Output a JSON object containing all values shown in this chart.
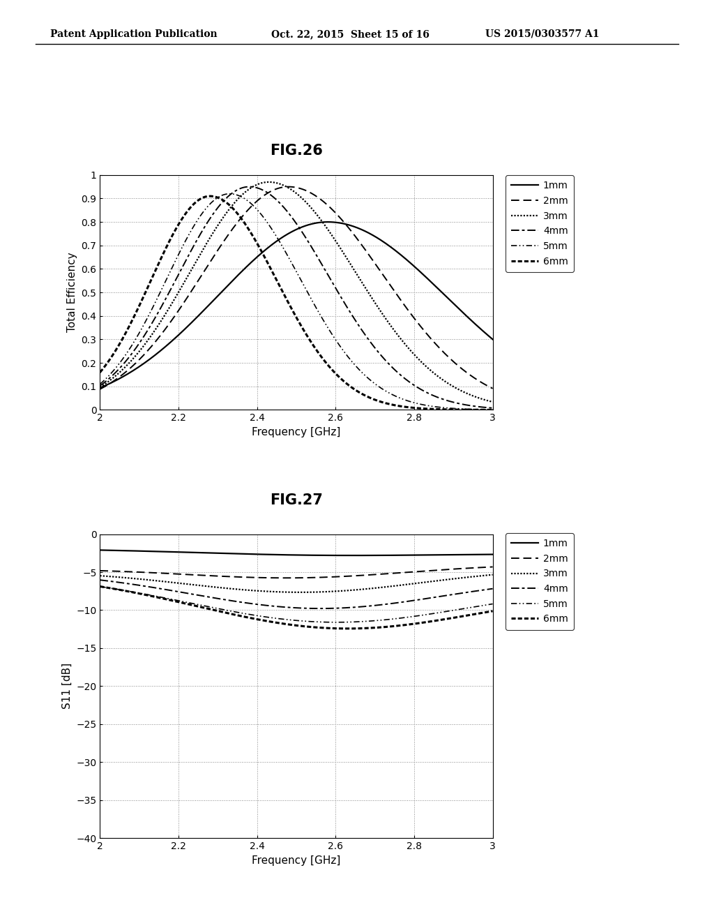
{
  "header_left": "Patent Application Publication",
  "header_mid": "Oct. 22, 2015  Sheet 15 of 16",
  "header_right": "US 2015/0303577 A1",
  "fig26_title": "FIG.26",
  "fig27_title": "FIG.27",
  "xlabel": "Frequency [GHz]",
  "fig26_ylabel": "Total Efficiency",
  "fig27_ylabel": "S11 [dB]",
  "legend_labels": [
    "1mm",
    "2mm",
    "3mm",
    "4mm",
    "5mm",
    "6mm"
  ],
  "fig26_params": [
    [
      2.58,
      0.8,
      0.28,
      0.3,
      0.1
    ],
    [
      2.48,
      0.95,
      0.22,
      0.24,
      0.17
    ],
    [
      2.43,
      0.97,
      0.2,
      0.22,
      0.2
    ],
    [
      2.38,
      0.95,
      0.18,
      0.2,
      0.24
    ],
    [
      2.33,
      0.92,
      0.16,
      0.18,
      0.3
    ],
    [
      2.28,
      0.91,
      0.15,
      0.17,
      0.52
    ]
  ],
  "fig27_params": [
    [
      -2.0,
      2.55,
      0.5,
      0.3,
      -2.5
    ],
    [
      -4.5,
      2.5,
      1.5,
      0.28,
      -4.0
    ],
    [
      -4.8,
      2.52,
      3.0,
      0.3,
      -4.5
    ],
    [
      -5.0,
      2.55,
      4.5,
      0.32,
      -5.5
    ],
    [
      -5.5,
      2.58,
      5.5,
      0.35,
      -6.5
    ],
    [
      -5.5,
      2.6,
      6.0,
      0.35,
      -7.0
    ]
  ],
  "background_color": "#ffffff"
}
